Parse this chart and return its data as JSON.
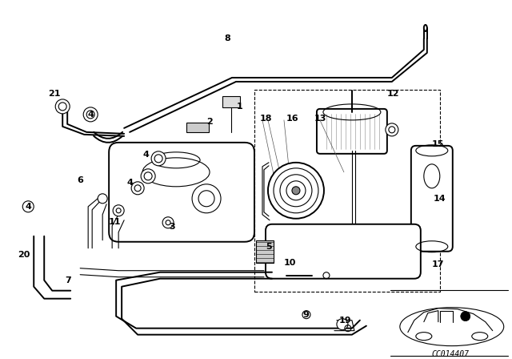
{
  "bg_color": "#ffffff",
  "line_color": "#000000",
  "diagram_code": "CC014407",
  "parts": [
    [
      "1",
      300,
      133,
      "right"
    ],
    [
      "2",
      262,
      152,
      "right"
    ],
    [
      "3",
      215,
      283,
      "right"
    ],
    [
      "4",
      113,
      143,
      "left"
    ],
    [
      "4",
      182,
      193,
      "right"
    ],
    [
      "4",
      162,
      228,
      "right"
    ],
    [
      "4",
      35,
      258,
      "left"
    ],
    [
      "5",
      336,
      308,
      "right"
    ],
    [
      "6",
      100,
      225,
      "right"
    ],
    [
      "7",
      85,
      350,
      "right"
    ],
    [
      "8",
      284,
      48,
      "right"
    ],
    [
      "9",
      382,
      393,
      "right"
    ],
    [
      "10",
      362,
      328,
      "right"
    ],
    [
      "11",
      143,
      277,
      "right"
    ],
    [
      "12",
      492,
      117,
      "right"
    ],
    [
      "13",
      400,
      148,
      "right"
    ],
    [
      "14",
      550,
      248,
      "right"
    ],
    [
      "15",
      548,
      180,
      "right"
    ],
    [
      "16",
      366,
      148,
      "right"
    ],
    [
      "17",
      548,
      330,
      "right"
    ],
    [
      "18",
      332,
      148,
      "right"
    ],
    [
      "19",
      432,
      400,
      "right"
    ],
    [
      "20",
      30,
      318,
      "right"
    ],
    [
      "21",
      68,
      117,
      "right"
    ]
  ]
}
